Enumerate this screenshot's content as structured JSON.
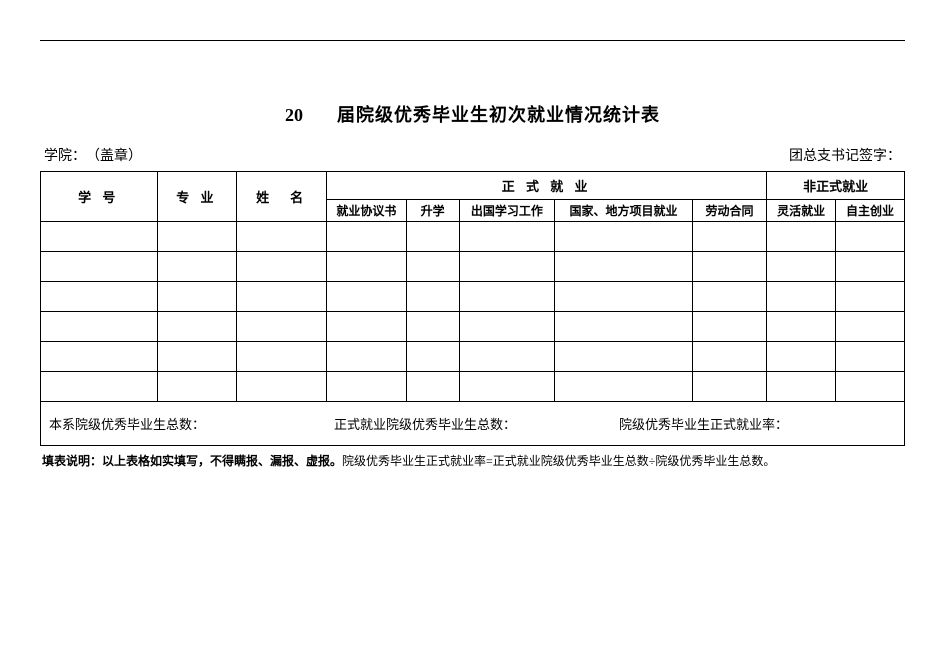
{
  "title": {
    "year_prefix": "20",
    "text": "届院级优秀毕业生初次就业情况统计表"
  },
  "subheader": {
    "left": "学院：　（盖章）",
    "right": "团总支书记签字："
  },
  "table": {
    "headers": {
      "student_id": "学 号",
      "major": "专 业",
      "name": "姓　名",
      "formal_group": "正 式 就 业",
      "informal_group": "非正式就业",
      "sub": {
        "agreement": "就业协议书",
        "further": "升学",
        "abroad": "出国学习工作",
        "project": "国家、地方项目就业",
        "contract": "劳动合同",
        "flexible": "灵活就业",
        "self": "自主创业"
      }
    },
    "data_row_count": 6,
    "summary": {
      "total_dept": "本系院级优秀毕业生总数：",
      "total_formal": "正式就业院级优秀毕业生总数：",
      "rate": "院级优秀毕业生正式就业率："
    }
  },
  "footnote": {
    "label": "填表说明：",
    "bold_part": "以上表格如实填写，不得瞒报、漏报、虚报。",
    "rest": "院级优秀毕业生正式就业率=正式就业院级优秀毕业生总数÷院级优秀毕业生总数。"
  }
}
